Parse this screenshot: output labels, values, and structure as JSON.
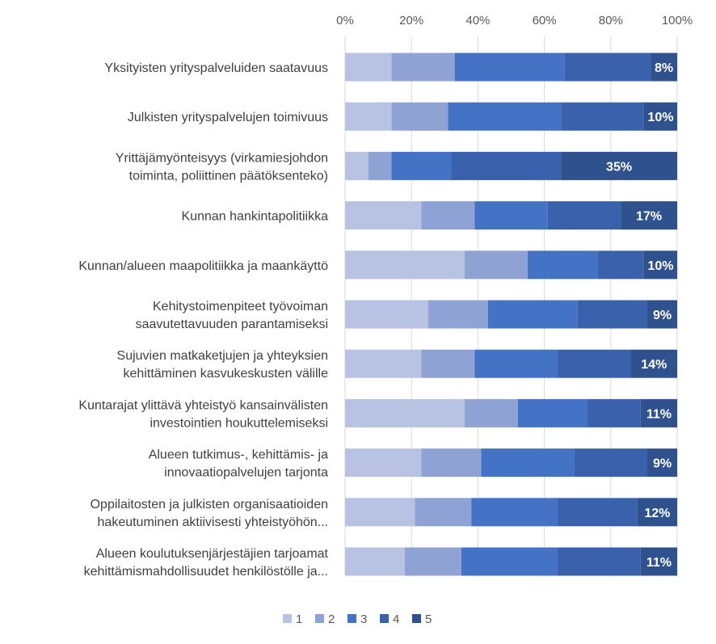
{
  "chart_data": {
    "type": "bar",
    "orientation": "horizontal",
    "stacked": "percent",
    "xlim": [
      0,
      100
    ],
    "ticks": [
      "0%",
      "20%",
      "40%",
      "60%",
      "80%",
      "100%"
    ],
    "tick_values": [
      0,
      20,
      40,
      60,
      80,
      100
    ],
    "grid": true,
    "legend_position": "bottom",
    "categories": [
      [
        "Yksityisten yrityspalveluiden saatavuus"
      ],
      [
        "Julkisten yrityspalvelujen toimivuus"
      ],
      [
        "Yrittäjämyönteisyys (virkamiesjohdon",
        "toiminta, poliittinen päätöksenteko)"
      ],
      [
        "Kunnan hankintapolitiikka"
      ],
      [
        "Kunnan/alueen maapolitiikka ja maankäyttö"
      ],
      [
        "Kehitystoimenpiteet työvoiman",
        "saavutettavuuden parantamiseksi"
      ],
      [
        "Sujuvien matkaketjujen ja yhteyksien",
        "kehittäminen kasvukeskusten välille"
      ],
      [
        "Kuntarajat ylittävä yhteistyö kansainvälisten",
        "investointien houkuttelemiseksi"
      ],
      [
        "Alueen tutkimus-, kehittämis- ja",
        "innovaatiopalvelujen tarjonta"
      ],
      [
        "Oppilaitosten ja julkisten organisaatioiden",
        "hakeutuminen aktiivisesti yhteistyöhön..."
      ],
      [
        "Alueen koulutuksenjärjestäjien tarjoamat",
        "kehittämismahdollisuudet henkilöstölle ja..."
      ]
    ],
    "series": [
      {
        "name": "1",
        "color": "#b8c2e2",
        "values": [
          14,
          14,
          7,
          23,
          36,
          25,
          23,
          36,
          23,
          21,
          18
        ]
      },
      {
        "name": "2",
        "color": "#8fa2d4",
        "values": [
          19,
          17,
          7,
          16,
          19,
          18,
          16,
          16,
          18,
          17,
          17
        ]
      },
      {
        "name": "3",
        "color": "#4472c4",
        "values": [
          33,
          34,
          18,
          22,
          21,
          27,
          25,
          21,
          28,
          26,
          29
        ]
      },
      {
        "name": "4",
        "color": "#3a62ac",
        "values": [
          26,
          25,
          33,
          22,
          14,
          21,
          22,
          16,
          22,
          24,
          25
        ]
      },
      {
        "name": "5",
        "color": "#2f528f",
        "values": [
          8,
          10,
          35,
          17,
          10,
          9,
          14,
          11,
          9,
          12,
          11
        ]
      }
    ],
    "data_labels": [
      "8%",
      "10%",
      "35%",
      "17%",
      "10%",
      "9%",
      "14%",
      "11%",
      "9%",
      "12%",
      "11%"
    ]
  }
}
